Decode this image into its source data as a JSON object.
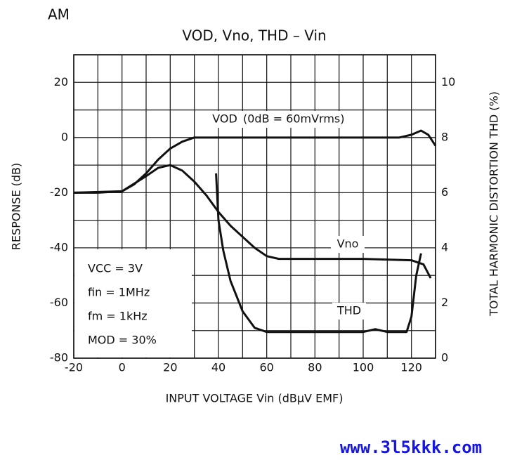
{
  "chart_data": {
    "type": "line",
    "header": "AM",
    "title": "VOD, Vno, THD – Vin",
    "x_label": "INPUT VOLTAGE Vin (dBμV EMF)",
    "y_label": "RESPONSE (dB)",
    "y2_label": "TOTAL HARMONIC DISTORTION THD (%)",
    "annotation": "(0dB = 60mVrms)",
    "conditions": [
      "VCC = 3V",
      "fin = 1MHz",
      "fm = 1kHz",
      "MOD = 30%"
    ],
    "watermark": "www.3l5kkk.com",
    "xlim": [
      -20,
      130
    ],
    "ylim": [
      -80,
      30
    ],
    "y2lim": [
      0,
      11
    ],
    "xticks": [
      -20,
      0,
      20,
      40,
      60,
      80,
      100,
      120
    ],
    "yticks": [
      -80,
      -60,
      -40,
      -20,
      0,
      20
    ],
    "y2ticks": [
      0,
      2,
      4,
      6,
      8,
      10
    ],
    "xgrid": [
      -20,
      -10,
      0,
      10,
      20,
      30,
      40,
      50,
      60,
      70,
      80,
      90,
      100,
      110,
      120,
      130
    ],
    "ygrid": [
      -80,
      -70,
      -60,
      -50,
      -40,
      -30,
      -20,
      -10,
      0,
      10,
      20,
      30
    ],
    "grid": true,
    "series": [
      {
        "name": "VOD",
        "color": "#111111",
        "x": [
          -20,
          -10,
          0,
          5,
          10,
          15,
          20,
          25,
          30,
          40,
          60,
          80,
          100,
          115,
          120,
          124,
          127,
          130
        ],
        "values": [
          -20,
          -20,
          -19.5,
          -17,
          -13,
          -8,
          -4,
          -1.5,
          0,
          0,
          0,
          0,
          0,
          0,
          1,
          2.5,
          1,
          -3
        ]
      },
      {
        "name": "Vno",
        "color": "#111111",
        "x": [
          -20,
          0,
          10,
          15,
          20,
          25,
          30,
          35,
          40,
          45,
          50,
          55,
          60,
          65,
          80,
          100,
          120,
          125,
          128
        ],
        "values": [
          -20,
          -19.5,
          -14,
          -11,
          -10,
          -12,
          -16,
          -21,
          -27,
          -32,
          -36,
          -40,
          -43,
          -44,
          -44,
          -44,
          -44.5,
          -46,
          -51
        ]
      },
      {
        "name": "THD",
        "color": "#111111",
        "axis": "y2",
        "x": [
          39,
          40,
          42,
          45,
          50,
          55,
          60,
          80,
          100,
          105,
          110,
          118,
          120,
          122,
          124
        ],
        "values": [
          6.7,
          5.0,
          3.9,
          2.8,
          1.7,
          1.1,
          0.95,
          0.95,
          0.95,
          1.05,
          0.95,
          0.95,
          1.5,
          3.0,
          3.8
        ]
      }
    ]
  }
}
